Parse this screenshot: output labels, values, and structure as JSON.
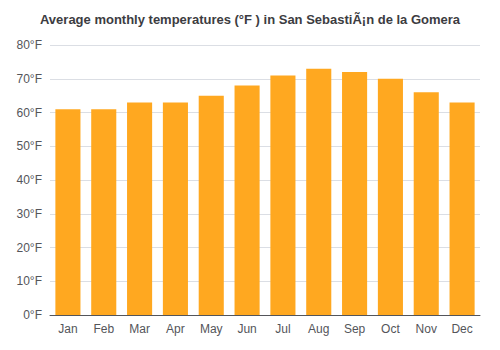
{
  "chart_data": {
    "type": "bar",
    "title": "Average monthly temperatures (°F ) in San SebastiÃ¡n de la Gomera",
    "categories": [
      "Jan",
      "Feb",
      "Mar",
      "Apr",
      "May",
      "Jun",
      "Jul",
      "Aug",
      "Sep",
      "Oct",
      "Nov",
      "Dec"
    ],
    "values": [
      61,
      61,
      63,
      63,
      65,
      68,
      71,
      73,
      72,
      70,
      66,
      63
    ],
    "color": "#FFA820",
    "ylim": [
      0,
      80
    ],
    "yticks": [
      {
        "value": 0,
        "label": "0°F"
      },
      {
        "value": 10,
        "label": "10°F"
      },
      {
        "value": 20,
        "label": "20°F"
      },
      {
        "value": 30,
        "label": "30°F"
      },
      {
        "value": 40,
        "label": "40°F"
      },
      {
        "value": 50,
        "label": "50°F"
      },
      {
        "value": 60,
        "label": "60°F"
      },
      {
        "value": 70,
        "label": "70°F"
      },
      {
        "value": 80,
        "label": "80°F"
      }
    ],
    "grid": true
  }
}
